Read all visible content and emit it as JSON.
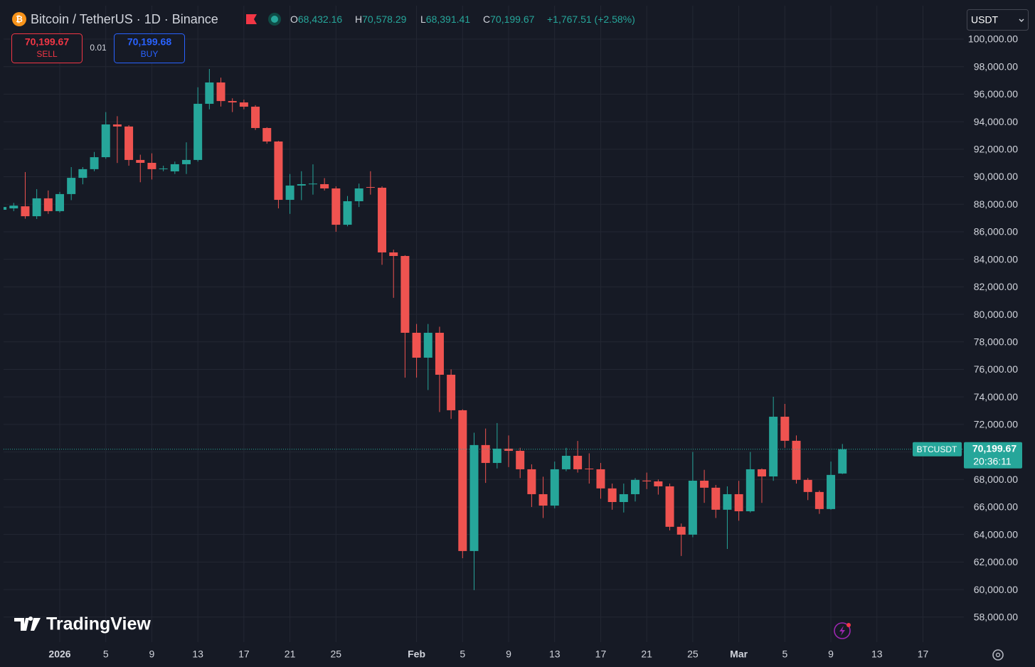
{
  "chart_data": {
    "type": "candlestick",
    "title": "Bitcoin / TetherUS · 1D · Binance",
    "header": {
      "open_label": "O",
      "open": "68,432.16",
      "high_label": "H",
      "high": "70,578.29",
      "low_label": "L",
      "low": "68,391.41",
      "close_label": "C",
      "close": "70,199.67",
      "change": "+1,767.51 (+2.58%)"
    },
    "trade": {
      "sell_price": "70,199.67",
      "sell": "SELL",
      "spread": "0.01",
      "buy_price": "70,199.68",
      "buy": "BUY"
    },
    "currency": "USDT",
    "price_label": {
      "symbol": "BTCUSDT",
      "price": "70,199.67",
      "countdown": "20:36:11"
    },
    "watermark": "TradingView",
    "colors": {
      "up": "#26a69a",
      "down": "#ef5350"
    },
    "categories": [
      null,
      null,
      null,
      null,
      null,
      "2026",
      null,
      null,
      null,
      "5",
      null,
      null,
      null,
      "9",
      null,
      null,
      null,
      "13",
      null,
      null,
      null,
      "17",
      null,
      null,
      null,
      "21",
      null,
      null,
      null,
      "25",
      null,
      null,
      null,
      null,
      null,
      null,
      "Feb",
      null,
      null,
      null,
      "5",
      null,
      null,
      null,
      "9",
      null,
      null,
      null,
      "13",
      null,
      null,
      null,
      "17",
      null,
      null,
      null,
      "21",
      null,
      null,
      null,
      "25",
      null,
      null,
      null,
      "Mar",
      null,
      null,
      null,
      "5",
      null,
      null,
      null,
      "9",
      null,
      null,
      null,
      "13",
      null,
      null,
      null,
      "17"
    ],
    "open": [
      87600,
      87700,
      87850,
      87130,
      88430,
      87500,
      88740,
      89920,
      90550,
      91420,
      93800,
      93650,
      91220,
      91010,
      90550,
      90390,
      90910,
      91220,
      95300,
      96850,
      95500,
      95400,
      95090,
      93540,
      92560,
      88320,
      89360,
      89460,
      89460,
      89150,
      86510,
      88220,
      89250,
      89200,
      84500,
      84240,
      78660,
      76850,
      78660,
      75610,
      73030,
      62800,
      70500,
      69200,
      70240,
      70080,
      68740,
      66930,
      66100,
      68740,
      69720,
      68790,
      68740,
      67350,
      66360,
      66930,
      67920,
      67860,
      67500,
      64560,
      63990,
      67910,
      67400,
      65800,
      66930,
      65690,
      68740,
      68220,
      72560,
      70810,
      67970,
      67090,
      65850,
      68432.16,
      null,
      null,
      null,
      null,
      null,
      null,
      null
    ],
    "high": [
      87900,
      88100,
      90340,
      89100,
      89000,
      88900,
      90700,
      90700,
      91800,
      94700,
      94400,
      93750,
      91600,
      91700,
      90800,
      91100,
      92500,
      96500,
      97830,
      97200,
      95700,
      95600,
      95200,
      93600,
      92600,
      90200,
      90400,
      90900,
      89900,
      89300,
      88600,
      89500,
      90400,
      89300,
      84700,
      84300,
      79300,
      79300,
      79100,
      76000,
      73100,
      71400,
      71700,
      72100,
      71200,
      70300,
      69100,
      68200,
      69300,
      70300,
      70800,
      69900,
      69200,
      67700,
      67700,
      68100,
      68500,
      68000,
      67700,
      64800,
      70000,
      68700,
      67600,
      67500,
      67900,
      70000,
      68800,
      74010,
      73490,
      71200,
      68100,
      67200,
      69300,
      70578.29,
      null,
      null,
      null,
      null,
      null,
      null,
      null
    ],
    "low": [
      87400,
      87500,
      86950,
      86930,
      87300,
      87400,
      88300,
      89450,
      90400,
      91300,
      91000,
      90800,
      89600,
      89800,
      90400,
      90200,
      90200,
      91100,
      94900,
      95100,
      94700,
      94900,
      93400,
      92400,
      87700,
      87300,
      88300,
      88700,
      89000,
      86000,
      86400,
      87800,
      88700,
      83600,
      81200,
      75400,
      75400,
      74500,
      72900,
      72400,
      62280,
      59960,
      67750,
      68800,
      68900,
      68100,
      66000,
      65200,
      65900,
      68600,
      68500,
      67700,
      66600,
      65800,
      65600,
      66400,
      67300,
      66900,
      64300,
      62440,
      63800,
      66300,
      65200,
      62950,
      65000,
      65600,
      66300,
      67900,
      70300,
      67700,
      66500,
      65500,
      65800,
      68391.41,
      null,
      null,
      null,
      null,
      null,
      null,
      null
    ],
    "close": [
      87800,
      87900,
      87130,
      88430,
      87500,
      88740,
      89920,
      90550,
      91420,
      93800,
      93650,
      91220,
      91010,
      90550,
      90600,
      90910,
      91220,
      95300,
      96850,
      95500,
      95400,
      95090,
      93540,
      92560,
      88320,
      89360,
      89460,
      89500,
      89150,
      86510,
      88220,
      89150,
      89200,
      84500,
      84240,
      78660,
      76850,
      78660,
      75610,
      73030,
      62800,
      70500,
      69200,
      70240,
      70080,
      68740,
      66930,
      66100,
      68740,
      69720,
      68740,
      68740,
      67350,
      66360,
      66930,
      67970,
      67860,
      67500,
      64560,
      63990,
      67910,
      67400,
      65800,
      66930,
      65690,
      68740,
      68220,
      72560,
      70810,
      67970,
      67090,
      65850,
      68330,
      70199.67,
      null,
      null,
      null,
      null,
      null,
      null,
      null
    ],
    "ylim": [
      56180,
      102430
    ],
    "yticks": [
      {
        "value": 58000,
        "label": "58,000.00"
      },
      {
        "value": 60000,
        "label": "60,000.00"
      },
      {
        "value": 62000,
        "label": "62,000.00"
      },
      {
        "value": 64000,
        "label": "64,000.00"
      },
      {
        "value": 66000,
        "label": "66,000.00"
      },
      {
        "value": 68000,
        "label": "68,000.00"
      },
      {
        "value": 70000,
        "label": "70,000.00"
      },
      {
        "value": 72000,
        "label": "72,000.00"
      },
      {
        "value": 74000,
        "label": "74,000.00"
      },
      {
        "value": 76000,
        "label": "76,000.00"
      },
      {
        "value": 78000,
        "label": "78,000.00"
      },
      {
        "value": 80000,
        "label": "80,000.00"
      },
      {
        "value": 82000,
        "label": "82,000.00"
      },
      {
        "value": 84000,
        "label": "84,000.00"
      },
      {
        "value": 86000,
        "label": "86,000.00"
      },
      {
        "value": 88000,
        "label": "88,000.00"
      },
      {
        "value": 90000,
        "label": "90,000.00"
      },
      {
        "value": 92000,
        "label": "92,000.00"
      },
      {
        "value": 94000,
        "label": "94,000.00"
      },
      {
        "value": 96000,
        "label": "96,000.00"
      },
      {
        "value": 98000,
        "label": "98,000.00"
      },
      {
        "value": 100000,
        "label": "100,000.00"
      }
    ],
    "grid": true
  }
}
